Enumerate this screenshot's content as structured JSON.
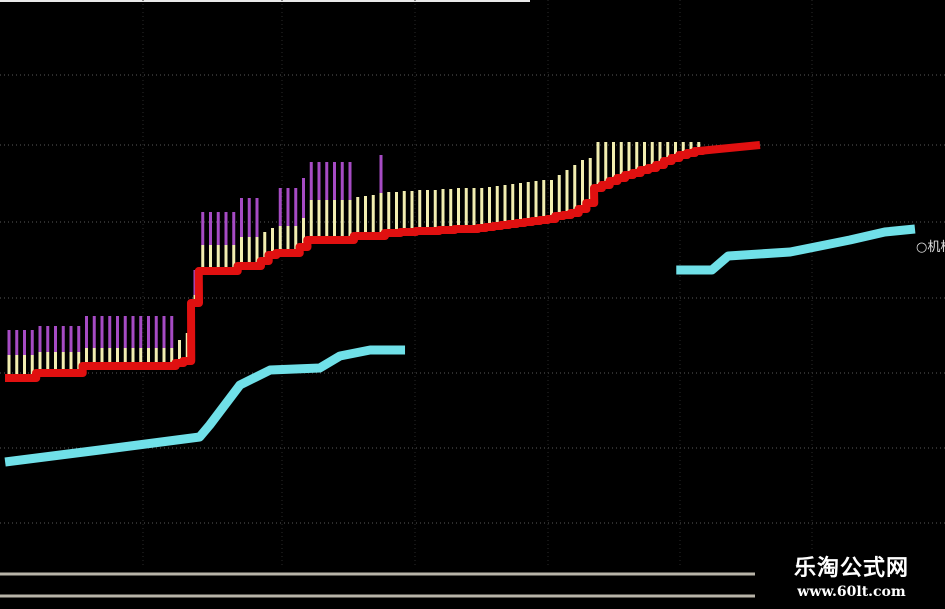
{
  "chart_data": {
    "type": "bar+line",
    "title": "",
    "xlabel": "",
    "ylabel": "",
    "grid": true,
    "background": "#000000",
    "colors": {
      "bar_lower": "#f2eeb0",
      "bar_upper": "#a64bc4",
      "red_line": "#e01010",
      "cyan_line": "#70e0e8",
      "grid": "#5a5a5a",
      "bottom_lines": "#b8b4a8"
    },
    "bars": {
      "red_base": [
        234,
        234,
        234,
        234,
        239,
        239,
        239,
        239,
        239,
        239,
        246,
        246,
        246,
        246,
        246,
        246,
        246,
        246,
        246,
        246,
        246,
        246,
        249,
        251,
        309,
        341,
        341,
        341,
        341,
        341,
        346,
        346,
        346,
        351,
        357,
        359,
        359,
        359,
        365,
        372,
        372,
        372,
        372,
        372,
        372,
        376,
        376,
        376,
        376,
        379,
        379,
        380,
        380,
        381,
        381,
        381,
        382,
        382,
        383,
        383,
        383,
        384,
        385,
        386,
        387,
        388,
        389,
        390,
        391,
        392,
        393,
        396,
        397,
        399,
        403,
        409,
        424,
        427,
        431,
        434,
        437,
        439,
        442,
        444,
        447,
        451,
        454,
        457,
        459,
        461
      ],
      "yellow_top": [
        254,
        254,
        254,
        254,
        257,
        257,
        257,
        257,
        257,
        257,
        261,
        261,
        261,
        261,
        261,
        261,
        261,
        261,
        261,
        261,
        261,
        261,
        269,
        276,
        314,
        364,
        364,
        364,
        364,
        364,
        372,
        372,
        372,
        377,
        381,
        383,
        383,
        383,
        391,
        409,
        409,
        409,
        409,
        409,
        409,
        412,
        413,
        414,
        416,
        417,
        417,
        418,
        418,
        419,
        419,
        419,
        420,
        420,
        421,
        421,
        421,
        421,
        422,
        423,
        424,
        425,
        426,
        427,
        428,
        429,
        429,
        434,
        439,
        444,
        449,
        451,
        467,
        467,
        467,
        467,
        467,
        467,
        467,
        467,
        467,
        467,
        467,
        467,
        467,
        467
      ],
      "purple_top": [
        279,
        279,
        279,
        279,
        283,
        283,
        283,
        283,
        283,
        283,
        293,
        293,
        293,
        293,
        293,
        293,
        293,
        293,
        293,
        293,
        293,
        293,
        null,
        null,
        339,
        397,
        397,
        397,
        397,
        397,
        411,
        411,
        411,
        null,
        null,
        421,
        421,
        421,
        431,
        447,
        447,
        447,
        447,
        447,
        447,
        null,
        null,
        null,
        454,
        null,
        null,
        null,
        null,
        null,
        null,
        null,
        null,
        null,
        null,
        null,
        null,
        null,
        null,
        null,
        null,
        null,
        null,
        null,
        null,
        null,
        null,
        null,
        null,
        null,
        null,
        null,
        null,
        null,
        null,
        null,
        null,
        null,
        null,
        null,
        null,
        null,
        null,
        null,
        null,
        null
      ]
    },
    "red_line_tail": [
      [
        89,
        461
      ],
      [
        91.6,
        463
      ],
      [
        96.9,
        467
      ]
    ],
    "cyan_series": [
      [
        [
          -0.5,
          147
        ],
        [
          11.7,
          159
        ],
        [
          24.6,
          172
        ],
        [
          25.9,
          184
        ],
        [
          29.8,
          224
        ],
        [
          33.7,
          239
        ],
        [
          40.1,
          241
        ],
        [
          42.7,
          253
        ],
        [
          46.6,
          259
        ],
        [
          51.1,
          259
        ]
      ],
      [
        [
          86.1,
          339
        ],
        [
          90.7,
          339
        ],
        [
          92.8,
          353
        ],
        [
          100.8,
          357
        ],
        [
          108.5,
          369
        ],
        [
          113,
          377
        ],
        [
          116.9,
          380
        ]
      ]
    ],
    "series_label": "○机构"
  },
  "watermark": {
    "title": "乐淘公式网",
    "url": "www.60lt.com"
  }
}
